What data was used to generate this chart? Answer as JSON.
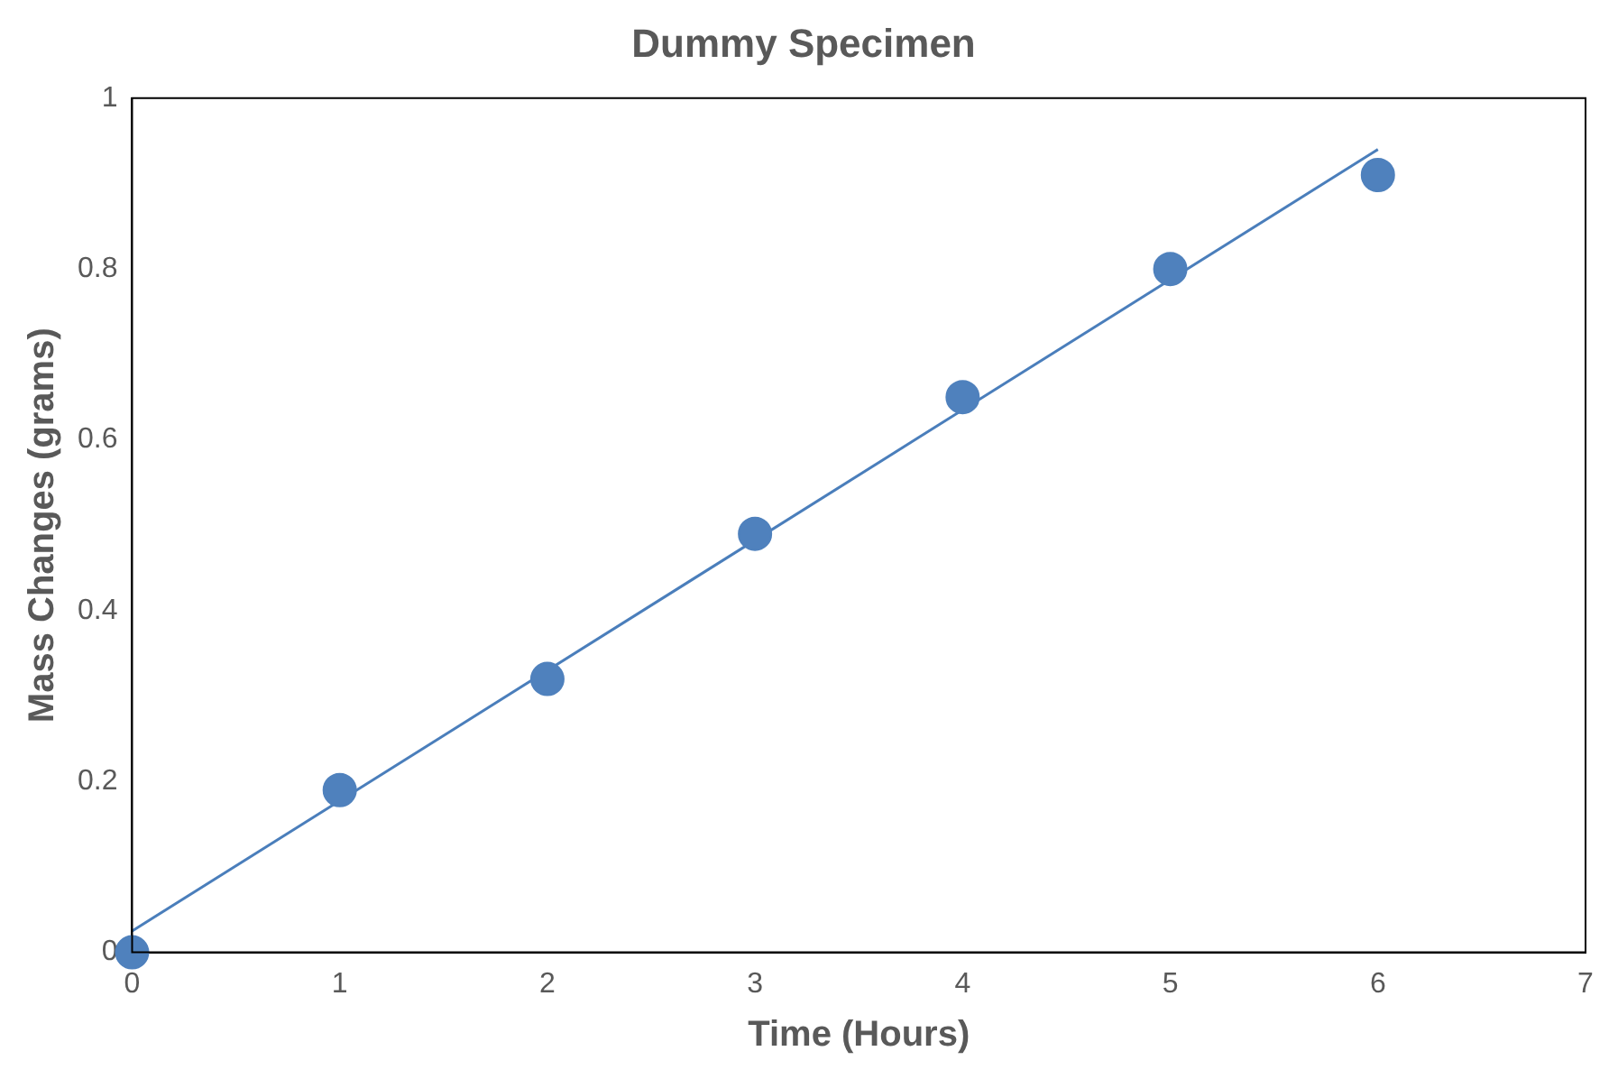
{
  "chart_data": {
    "type": "scatter",
    "title": "Dummy Specimen",
    "xlabel": "Time (Hours)",
    "ylabel": "Mass Changes (grams)",
    "xlim": [
      0,
      7
    ],
    "xticks": [
      0,
      1,
      2,
      3,
      4,
      5,
      6,
      7
    ],
    "ylim": [
      0,
      1
    ],
    "yticks": [
      0,
      0.2,
      0.4,
      0.6,
      0.8,
      1
    ],
    "grid": false,
    "legend": false,
    "series": [
      {
        "color": "#4f81bd",
        "marker": "circle",
        "x": [
          0,
          1,
          2,
          3,
          4,
          5,
          6
        ],
        "values": [
          0,
          0.19,
          0.32,
          0.49,
          0.65,
          0.8,
          0.91
        ]
      },
      {
        "type": "line",
        "color": "#4a7ebb",
        "marker": "none",
        "line_style": "solid",
        "x": [
          0,
          6
        ],
        "values": [
          0.025,
          0.94
        ]
      }
    ]
  }
}
